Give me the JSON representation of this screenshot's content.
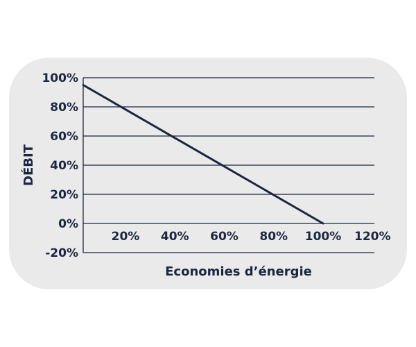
{
  "chart_data": {
    "type": "line",
    "xlabel": "Economies d’énergie",
    "ylabel": "DÉBIT",
    "x_ticks": [
      {
        "value": 20,
        "label": "20%"
      },
      {
        "value": 40,
        "label": "40%"
      },
      {
        "value": 60,
        "label": "60%"
      },
      {
        "value": 80,
        "label": "80%"
      },
      {
        "value": 100,
        "label": "100%"
      },
      {
        "value": 120,
        "label": "120%"
      }
    ],
    "y_ticks": [
      {
        "value": 100,
        "label": "100%"
      },
      {
        "value": 80,
        "label": "80%"
      },
      {
        "value": 60,
        "label": "60%"
      },
      {
        "value": 40,
        "label": "40%"
      },
      {
        "value": 20,
        "label": "20%"
      },
      {
        "value": 0,
        "label": "0%"
      },
      {
        "value": -20,
        "label": "-20%"
      }
    ],
    "xlim": [
      0,
      120
    ],
    "ylim": [
      -20,
      100
    ],
    "grid": "horizontal",
    "series": [
      {
        "x": [
          0,
          100
        ],
        "y": [
          95,
          0
        ]
      }
    ],
    "colors": {
      "line": "#1c2640",
      "grid": "#1c2640",
      "panel": "#eaeaea"
    }
  }
}
